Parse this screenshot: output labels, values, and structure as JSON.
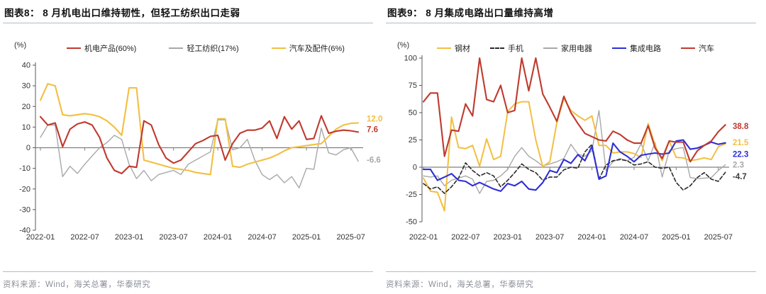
{
  "panels": [
    {
      "source": "资料来源：Wind，海关总署，华泰研究"
    },
    {
      "source": "资料来源：Wind，海关总署，华泰研究"
    }
  ],
  "colors": {
    "rule": "#a9bfd3",
    "source_text": "#8b9199",
    "axis": "#595959",
    "zero_line": "#808080",
    "tick_text": "#333333",
    "red": "#bf3a2e",
    "yellow": "#f2bf41",
    "gray": "#a8a8a8",
    "blue": "#2d2fd5",
    "black": "#2a2a2a"
  },
  "chart_data": [
    {
      "type": "line",
      "title": "图表8： 8 月机电出口维持韧性，但轻工纺织出口走弱",
      "unit": "(%)",
      "grid": false,
      "legend_position": "top",
      "ylim": [
        -40,
        40
      ],
      "yticks": [
        40,
        30,
        20,
        10,
        0,
        -10,
        -20,
        -30,
        -40
      ],
      "x_tick_labels": [
        "2022-01",
        "2022-07",
        "2023-01",
        "2023-07",
        "2024-01",
        "2024-07",
        "2025-01",
        "2025-07"
      ],
      "x": [
        "2022-01",
        "2022-02",
        "2022-03",
        "2022-04",
        "2022-05",
        "2022-06",
        "2022-07",
        "2022-08",
        "2022-09",
        "2022-10",
        "2022-11",
        "2022-12",
        "2023-01",
        "2023-02",
        "2023-03",
        "2023-04",
        "2023-05",
        "2023-06",
        "2023-07",
        "2023-08",
        "2023-09",
        "2023-10",
        "2023-11",
        "2023-12",
        "2024-01",
        "2024-02",
        "2024-03",
        "2024-04",
        "2024-05",
        "2024-06",
        "2024-07",
        "2024-08",
        "2024-09",
        "2024-10",
        "2024-11",
        "2024-12",
        "2025-01",
        "2025-02",
        "2025-03",
        "2025-04",
        "2025-05",
        "2025-06",
        "2025-07",
        "2025-08"
      ],
      "series": [
        {
          "name": "机电产品(60%)",
          "color": "#bf3a2e",
          "dash": false,
          "width": 2.1,
          "z": 3,
          "end_label": "7.6",
          "label_dy": -4,
          "values": [
            15,
            11,
            12,
            0.5,
            9,
            11.5,
            12.5,
            11,
            5,
            -5,
            -11,
            -12.5,
            -9,
            -9.5,
            13,
            11,
            1.5,
            -5,
            -7.5,
            -6,
            -2,
            2,
            3.5,
            5.5,
            6,
            -6,
            2,
            7,
            8.5,
            8.5,
            9.5,
            13,
            4.5,
            15,
            9,
            13,
            4,
            4.5,
            15.5,
            7,
            8,
            8.5,
            8.2,
            7.6
          ]
        },
        {
          "name": "轻工纺织(17%)",
          "color": "#a8a8a8",
          "dash": false,
          "width": 1.4,
          "z": 1,
          "end_label": "-6.6",
          "label_dy": -2,
          "values": [
            5,
            11,
            11,
            -14,
            -9,
            -12.5,
            -8,
            -4,
            0,
            2.5,
            6,
            4,
            -8,
            -15,
            -11,
            -16,
            -13,
            -12,
            -11,
            -13,
            -8,
            -6,
            -4,
            -2,
            13.5,
            13.5,
            -1,
            0,
            4,
            -6,
            -13,
            -15.5,
            -13,
            -17,
            -14,
            -19.5,
            -10,
            -10.5,
            9.5,
            -2.5,
            -3.5,
            -1,
            0,
            -6.6
          ]
        },
        {
          "name": "汽车及配件(6%)",
          "color": "#f2bf41",
          "dash": false,
          "width": 2.1,
          "z": 2,
          "end_label": "12.0",
          "label_dy": -6,
          "values": [
            23,
            31,
            30,
            16,
            15.5,
            16,
            16.5,
            16,
            15,
            13,
            10,
            6,
            29,
            29,
            -6,
            -7,
            -8,
            -9,
            -10,
            -10.5,
            -11,
            -12,
            -12.5,
            -13,
            14,
            14,
            -9,
            -9.5,
            -8,
            -7,
            -6,
            -5,
            -3.5,
            -1.5,
            0,
            0.5,
            1,
            1.5,
            2,
            5.5,
            9,
            11,
            11.8,
            12
          ]
        }
      ]
    },
    {
      "type": "line",
      "title": "图表9： 8 月集成电路出口量维持高增",
      "unit": "(%)",
      "grid": false,
      "legend_position": "top",
      "ylim": [
        -50,
        100
      ],
      "yticks": [
        100,
        75,
        50,
        25,
        0,
        -25,
        -50
      ],
      "x_tick_labels": [
        "2022-01",
        "2022-07",
        "2023-01",
        "2023-07",
        "2024-01",
        "2024-07",
        "2025-01",
        "2025-07"
      ],
      "x": [
        "2022-01",
        "2022-02",
        "2022-03",
        "2022-04",
        "2022-05",
        "2022-06",
        "2022-07",
        "2022-08",
        "2022-09",
        "2022-10",
        "2022-11",
        "2022-12",
        "2023-01",
        "2023-02",
        "2023-03",
        "2023-04",
        "2023-05",
        "2023-06",
        "2023-07",
        "2023-08",
        "2023-09",
        "2023-10",
        "2023-11",
        "2023-12",
        "2024-01",
        "2024-02",
        "2024-03",
        "2024-04",
        "2024-05",
        "2024-06",
        "2024-07",
        "2024-08",
        "2024-09",
        "2024-10",
        "2024-11",
        "2024-12",
        "2025-01",
        "2025-02",
        "2025-03",
        "2025-04",
        "2025-05",
        "2025-06",
        "2025-07",
        "2025-08"
      ],
      "series": [
        {
          "name": "钢材",
          "color": "#f2bf41",
          "dash": false,
          "width": 2,
          "z": 2,
          "end_label": "21.5",
          "label_dy": -2,
          "values": [
            -10,
            -22,
            -23,
            -40,
            46,
            18,
            17,
            20,
            1,
            26,
            7,
            10,
            51,
            58,
            60,
            60,
            25,
            0.5,
            5,
            41,
            63,
            52,
            47,
            43,
            47,
            20,
            20,
            13,
            14,
            14,
            12.5,
            9,
            40,
            20,
            6,
            24,
            9,
            8.5,
            6,
            7,
            8.5,
            7,
            18.7,
            21.5
          ]
        },
        {
          "name": "手机",
          "color": "#2a2a2a",
          "dash": true,
          "width": 1.6,
          "z": 3,
          "end_label": "-4.7",
          "label_dy": 6,
          "values": [
            -15,
            -20,
            -18,
            -24,
            -18,
            -10,
            4,
            -3,
            -8,
            -5,
            -8,
            -18,
            -12,
            -5,
            3,
            -2,
            -5,
            -12,
            -9,
            -9,
            -2.5,
            0,
            -1,
            14,
            21,
            -11,
            2,
            6,
            7,
            6,
            2,
            3,
            5,
            0,
            -1,
            0,
            -14,
            -21,
            -17,
            -9.5,
            -5,
            -11,
            -13,
            -4.7
          ]
        },
        {
          "name": "家用电器",
          "color": "#a8a8a8",
          "dash": false,
          "width": 1.4,
          "z": 1,
          "end_label": "2.3",
          "label_dy": 0,
          "values": [
            -8,
            -9,
            -8,
            -17,
            -12,
            -10,
            -8,
            -11,
            -24,
            -13,
            -12,
            -8,
            -2,
            10,
            18,
            10,
            6,
            1,
            3,
            5,
            8,
            21,
            12,
            10,
            15,
            52,
            -3,
            5,
            8,
            6,
            9,
            21.5,
            6,
            22.5,
            -9,
            15,
            17,
            18,
            -9.5,
            -10.5,
            -10,
            -9.5,
            -3,
            2.3
          ]
        },
        {
          "name": "集成电路",
          "color": "#2d2fd5",
          "dash": false,
          "width": 2.1,
          "z": 4,
          "end_label": "22.3",
          "label_dy": 16,
          "values": [
            -2,
            -2,
            -12,
            -9,
            -6,
            -12,
            -13,
            -17,
            -14,
            -17,
            -20,
            -22,
            -15,
            -17,
            -13,
            -20,
            -21,
            -14,
            -3,
            -5,
            7,
            3.5,
            11.5,
            6,
            19,
            -11,
            -8,
            22,
            14,
            10,
            5,
            11,
            12,
            13,
            12,
            13,
            24,
            25,
            16.5,
            17.5,
            20,
            23,
            21,
            22.3
          ]
        },
        {
          "name": "汽车",
          "color": "#bf3a2e",
          "dash": false,
          "width": 2.1,
          "z": 5,
          "end_label": "38.8",
          "label_dy": 2,
          "values": [
            60,
            68,
            68,
            10,
            34,
            33,
            58,
            47,
            100,
            62,
            60,
            75,
            50,
            52,
            100,
            70,
            100,
            67,
            55,
            42,
            65,
            50,
            40,
            31,
            28,
            25,
            24,
            33,
            30,
            25,
            22,
            22,
            38,
            17.5,
            8,
            24,
            23,
            23,
            5,
            15,
            20,
            24,
            32.5,
            38.8
          ]
        }
      ]
    }
  ]
}
